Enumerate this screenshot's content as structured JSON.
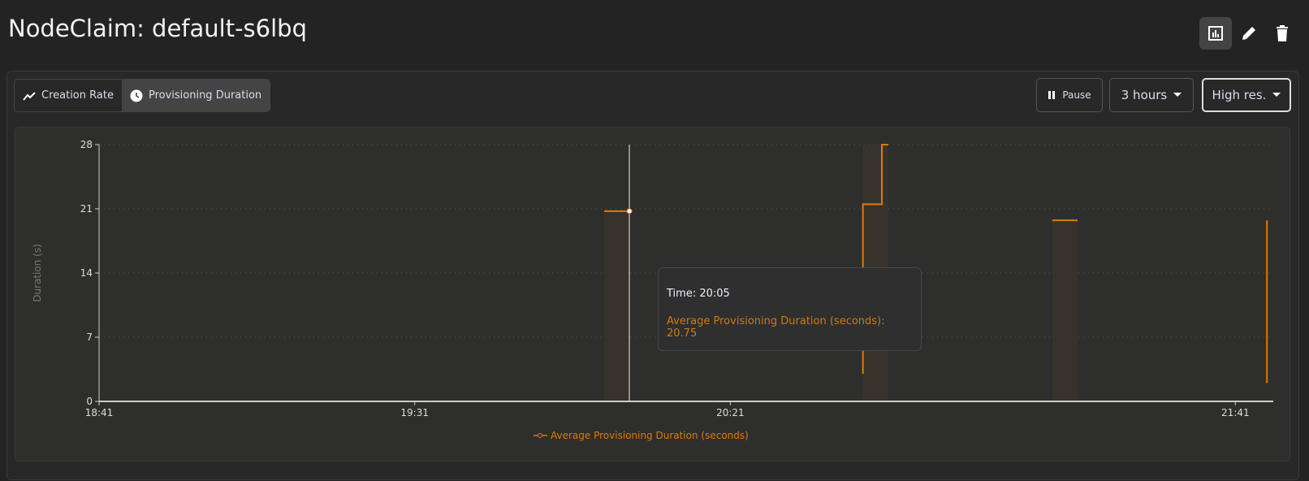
{
  "header": {
    "title": "NodeClaim: default-s6lbq",
    "actions": [
      {
        "icon": "bar-chart-icon",
        "active": true
      },
      {
        "icon": "pencil-icon"
      },
      {
        "icon": "trash-icon"
      }
    ]
  },
  "tabs": [
    {
      "label": "Creation Rate",
      "icon": "trend-line-icon"
    },
    {
      "label": "Provisioning Duration",
      "icon": "clock-icon",
      "active": true
    }
  ],
  "controls": {
    "pause_label": "Pause",
    "range_label": "3 hours",
    "resolution_label": "High res."
  },
  "tooltip": {
    "time": "Time: 20:05",
    "value": "Average Provisioning Duration (seconds): 20.75"
  },
  "chart_data": {
    "type": "line",
    "step": true,
    "ylabel": "Duration (s)",
    "yticks": [
      0,
      7,
      14,
      21,
      28
    ],
    "ylim": [
      0,
      28
    ],
    "xticks": [
      "18:41",
      "19:31",
      "20:21",
      "21:41"
    ],
    "xlim": [
      "18:41",
      "21:47"
    ],
    "grid": "horizontal-dotted",
    "legend": "bottom",
    "color": "#e07b00",
    "series": [
      {
        "name": "Average Provisioning Duration (seconds)",
        "segments": [
          [
            [
              "20:01",
              20.75
            ],
            [
              "20:05",
              20.75
            ]
          ],
          [
            [
              "20:42",
              3
            ],
            [
              "20:42",
              21.5
            ],
            [
              "20:45",
              21.5
            ],
            [
              "20:45",
              28
            ],
            [
              "20:46",
              28
            ]
          ],
          [
            [
              "21:12",
              19.75
            ],
            [
              "21:16",
              19.75
            ]
          ],
          [
            [
              "21:46",
              2
            ],
            [
              "21:46",
              19.75
            ]
          ]
        ]
      }
    ],
    "hover": {
      "x": "20:05",
      "y": 20.75
    }
  }
}
